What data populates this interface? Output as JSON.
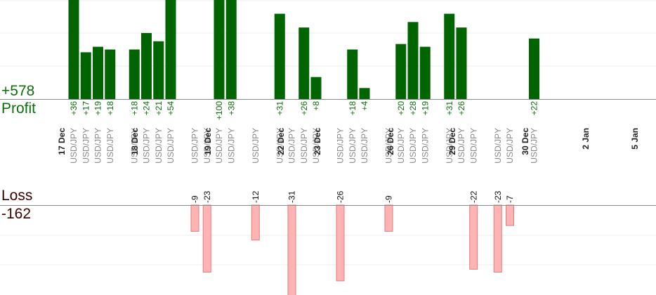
{
  "labels": {
    "profit_total": "+578",
    "profit": "Profit",
    "loss": "Loss",
    "loss_total": "-162"
  },
  "colors": {
    "profit_bar": "#006400",
    "profit_text": "#0a6e0a",
    "loss_bar": "#ffb3b3",
    "loss_bar_border": "#e07c7c",
    "loss_text": "#3a0000",
    "date_text": "#222222",
    "pair_text": "#888888"
  },
  "chart_data": {
    "type": "bar",
    "grid": true,
    "dates": [
      "17 Dec",
      "18 Dec",
      "19 Dec",
      "22 Dec",
      "23 Dec",
      "26 Dec",
      "29 Dec",
      "30 Dec",
      "2 Jan",
      "5 Jan"
    ],
    "trades": [
      {
        "date": "17 Dec",
        "pair": "USD/JPY",
        "value": 36
      },
      {
        "date": "17 Dec",
        "pair": "USD/JPY",
        "value": 17
      },
      {
        "date": "17 Dec",
        "pair": "USD/JPY",
        "value": 19
      },
      {
        "date": "17 Dec",
        "pair": "USD/JPY",
        "value": 18
      },
      {
        "date": "18 Dec",
        "pair": "USD/JPY",
        "value": 18
      },
      {
        "date": "18 Dec",
        "pair": "USD/JPY",
        "value": 24
      },
      {
        "date": "18 Dec",
        "pair": "USD/JPY",
        "value": 21
      },
      {
        "date": "18 Dec",
        "pair": "USD/JPY",
        "value": 54
      },
      {
        "date": "19 Dec",
        "pair": "USD/JPY",
        "value": -9
      },
      {
        "date": "19 Dec",
        "pair": "USD/JPY",
        "value": -23
      },
      {
        "date": "19 Dec",
        "pair": "USD/JPY",
        "value": 100
      },
      {
        "date": "19 Dec",
        "pair": "USD/JPY",
        "value": 38
      },
      {
        "date": "22 Dec",
        "pair": "USD/JPY",
        "value": -12
      },
      {
        "date": "23 Dec",
        "pair": "USD/JPY",
        "value": 31
      },
      {
        "date": "23 Dec",
        "pair": "USD/JPY",
        "value": -31
      },
      {
        "date": "23 Dec",
        "pair": "USD/JPY",
        "value": 26
      },
      {
        "date": "23 Dec",
        "pair": "USD/JPY",
        "value": 8
      },
      {
        "date": "26 Dec",
        "pair": "USD/JPY",
        "value": -26
      },
      {
        "date": "26 Dec",
        "pair": "USD/JPY",
        "value": 18
      },
      {
        "date": "26 Dec",
        "pair": "USD/JPY",
        "value": 4
      },
      {
        "date": "29 Dec",
        "pair": "USD/JPY",
        "value": -9
      },
      {
        "date": "29 Dec",
        "pair": "USD/JPY",
        "value": 20
      },
      {
        "date": "29 Dec",
        "pair": "USD/JPY",
        "value": 28
      },
      {
        "date": "29 Dec",
        "pair": "USD/JPY",
        "value": 19
      },
      {
        "date": "30 Dec",
        "pair": "USD/JPY",
        "value": 31
      },
      {
        "date": "30 Dec",
        "pair": "USD/JPY",
        "value": 26
      },
      {
        "date": "30 Dec",
        "pair": "USD/JPY",
        "value": -22
      },
      {
        "date": "2 Jan",
        "pair": "USD/JPY",
        "value": -23
      },
      {
        "date": "2 Jan",
        "pair": "USD/JPY",
        "value": -7
      },
      {
        "date": "5 Jan",
        "pair": "USD/JPY",
        "value": 22
      }
    ]
  }
}
